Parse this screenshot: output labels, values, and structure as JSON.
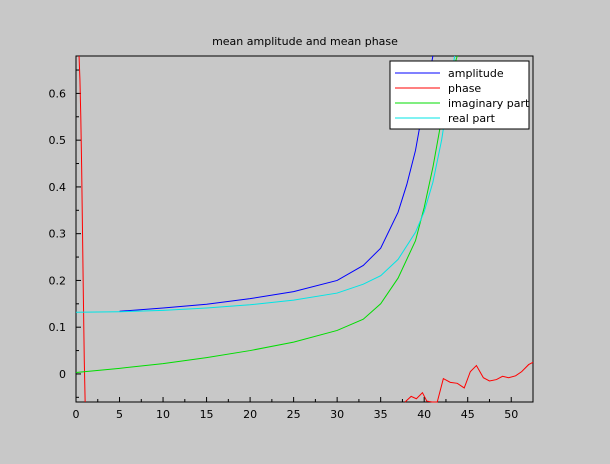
{
  "chart_data": {
    "type": "line",
    "title": "mean amplitude and mean phase",
    "xlabel": "",
    "ylabel": "",
    "xlim": [
      0,
      52.5
    ],
    "ylim": [
      -0.06,
      0.68
    ],
    "grid": false,
    "legend_position": "top-right",
    "x_ticks": [
      0,
      5,
      10,
      15,
      20,
      25,
      30,
      35,
      40,
      45,
      50
    ],
    "y_ticks": [
      0,
      0.1,
      0.2,
      0.3,
      0.4,
      0.5,
      0.6
    ],
    "x_tick_labels": [
      "0",
      "5",
      "10",
      "15",
      "20",
      "25",
      "30",
      "35",
      "40",
      "45",
      "50"
    ],
    "y_tick_labels": [
      "0",
      "0.1",
      "0.2",
      "0.3",
      "0.4",
      "0.5",
      "0.6"
    ],
    "colors": {
      "background": "#c8c8c8",
      "plot_background": "#c8c8c8",
      "axis": "#000000"
    },
    "series": [
      {
        "name": "amplitude",
        "color": "#0000ff",
        "x": [
          5,
          10,
          15,
          20,
          25,
          30,
          33,
          35,
          37,
          38,
          39,
          40,
          41
        ],
        "y": [
          0.134,
          0.141,
          0.149,
          0.161,
          0.176,
          0.2,
          0.232,
          0.269,
          0.346,
          0.405,
          0.478,
          0.582,
          0.68
        ]
      },
      {
        "name": "phase",
        "color": "#ff0000",
        "segments": [
          {
            "x": [
              0.35,
              0.45,
              0.55,
              0.65,
              0.75,
              0.85,
              0.95,
              1.05
            ],
            "y": [
              0.68,
              0.63,
              0.55,
              0.44,
              0.3,
              0.16,
              0.03,
              -0.06
            ]
          },
          {
            "x": [
              37.8,
              38.5,
              39.1,
              39.8,
              40.3,
              40.9,
              41.5,
              42.2,
              43.0,
              43.8,
              44.6,
              45.3,
              46.0,
              46.8,
              47.5,
              48.3,
              49.0,
              49.7,
              50.5,
              51.2,
              52.0,
              52.5
            ],
            "y": [
              -0.06,
              -0.048,
              -0.053,
              -0.04,
              -0.058,
              -0.06,
              -0.072,
              -0.01,
              -0.018,
              -0.02,
              -0.03,
              0.005,
              0.018,
              -0.008,
              -0.015,
              -0.012,
              -0.005,
              -0.008,
              -0.004,
              0.005,
              0.02,
              0.025
            ]
          }
        ]
      },
      {
        "name": "imaginary part",
        "color": "#00dd00",
        "x": [
          0,
          5,
          10,
          15,
          20,
          25,
          30,
          33,
          35,
          37,
          39,
          40,
          41,
          42,
          43,
          43.8
        ],
        "y": [
          0.003,
          0.012,
          0.022,
          0.035,
          0.05,
          0.068,
          0.093,
          0.117,
          0.15,
          0.205,
          0.285,
          0.356,
          0.442,
          0.545,
          0.632,
          0.68
        ]
      },
      {
        "name": "real part",
        "color": "#00e5e5",
        "x": [
          0,
          5,
          10,
          15,
          20,
          25,
          30,
          33,
          35,
          37,
          39,
          40,
          41,
          42,
          43,
          43.5
        ],
        "y": [
          0.132,
          0.133,
          0.136,
          0.141,
          0.148,
          0.158,
          0.173,
          0.192,
          0.21,
          0.245,
          0.303,
          0.347,
          0.41,
          0.5,
          0.62,
          0.68
        ]
      }
    ]
  }
}
